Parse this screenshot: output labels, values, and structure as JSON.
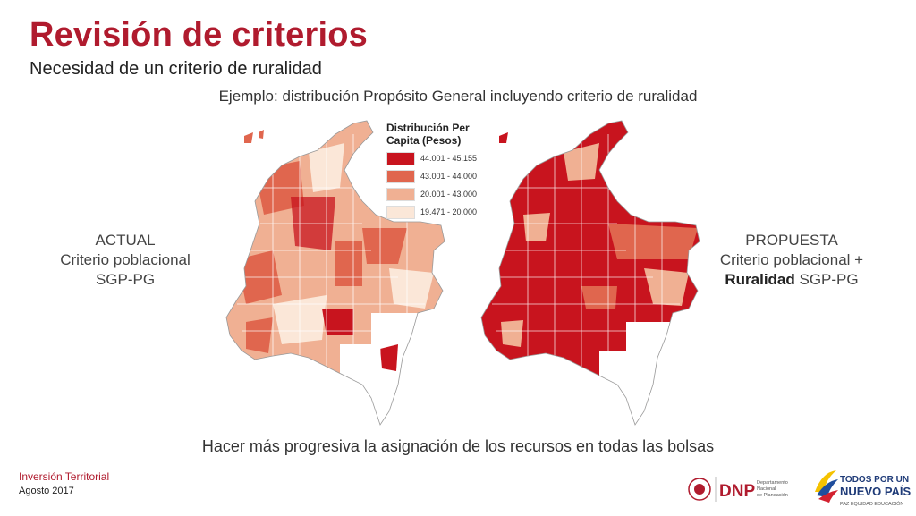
{
  "slide": {
    "title": "Revisión de criterios",
    "subtitle": "Necesidad de un criterio de ruralidad",
    "example": "Ejemplo: distribución Propósito General incluyendo criterio de ruralidad",
    "bottom_line": "Hacer más progresiva la asignación de los recursos en todas las bolsas"
  },
  "left_label": {
    "line1": "ACTUAL",
    "line2": "Criterio poblacional",
    "line3": "SGP-PG"
  },
  "right_label": {
    "line1": "PROPUESTA",
    "line2": "Criterio poblacional +",
    "line3_bold": "Ruralidad",
    "line3_rest": " SGP-PG"
  },
  "legend": {
    "title_line1": "Distribución Per",
    "title_line2": "Capita (Pesos)",
    "items": [
      {
        "label": "44.001 - 45.155",
        "color": "#c8141e"
      },
      {
        "label": "43.001 - 44.000",
        "color": "#e0664e"
      },
      {
        "label": "20.001 - 43.000",
        "color": "#f0b093"
      },
      {
        "label": "19.471 - 20.000",
        "color": "#fbe7d8"
      }
    ]
  },
  "footer": {
    "section": "Inversión Territorial",
    "date": "Agosto 2017"
  },
  "logos": {
    "dnp_text": "DNP",
    "dnp_sub1": "Departamento",
    "dnp_sub2": "Nacional",
    "dnp_sub3": "de Planeación",
    "gov_line1": "TODOS POR UN",
    "gov_line2": "NUEVO PAÍS",
    "gov_line3": "PAZ  EQUIDAD  EDUCACIÓN"
  },
  "colors": {
    "brand_red": "#b01b2e",
    "map_dark": "#c8141e",
    "map_mid": "#e0664e",
    "map_light": "#f0b093",
    "map_pale": "#fbe7d8"
  }
}
